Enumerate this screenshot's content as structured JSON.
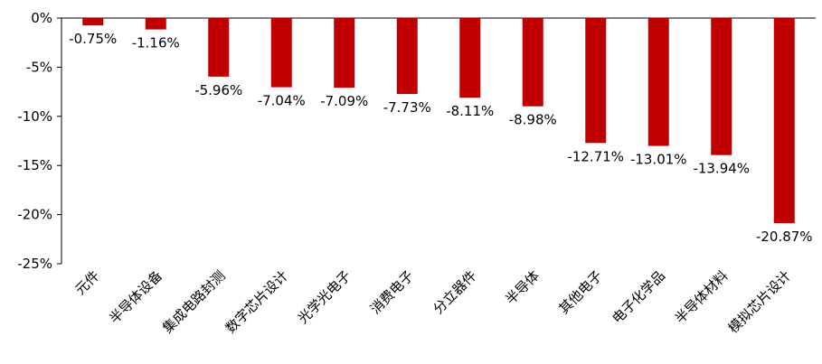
{
  "chart_data": {
    "type": "bar",
    "title": "",
    "xlabel": "",
    "ylabel": "",
    "categories": [
      "元件",
      "半导体设备",
      "集成电路封测",
      "数字芯片设计",
      "光学光电子",
      "消费电子",
      "分立器件",
      "半导体",
      "其他电子",
      "电子化学品",
      "半导体材料",
      "模拟芯片设计"
    ],
    "values": [
      -0.75,
      -1.16,
      -5.96,
      -7.04,
      -7.09,
      -7.73,
      -8.11,
      -8.98,
      -12.71,
      -13.01,
      -13.94,
      -20.87
    ],
    "data_labels": [
      "-0.75%",
      "-1.16%",
      "-5.96%",
      "-7.04%",
      "-7.09%",
      "-7.73%",
      "-8.11%",
      "-8.98%",
      "-12.71%",
      "-13.01%",
      "-13.94%",
      "-20.87%"
    ],
    "ylim": [
      -25,
      0
    ],
    "yticks": [
      0,
      -5,
      -10,
      -15,
      -20,
      -25
    ],
    "ytick_labels": [
      "0%",
      "-5%",
      "-10%",
      "-15%",
      "-20%",
      "-25%"
    ],
    "bar_color": "#c00000",
    "grid": false,
    "legend": "none"
  }
}
